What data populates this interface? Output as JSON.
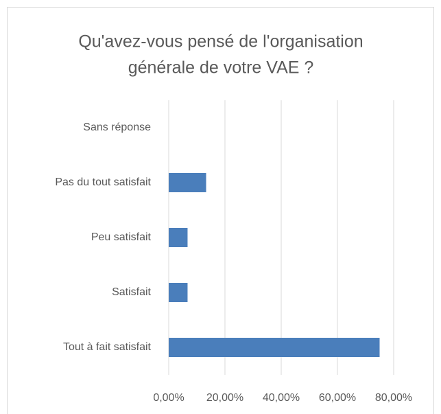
{
  "chart_data": {
    "type": "bar",
    "orientation": "horizontal",
    "title": [
      "Qu'avez-vous pensé de l'organisation",
      "générale de votre VAE ?"
    ],
    "categories": [
      "Sans réponse",
      "Pas du tout satisfait",
      "Peu satisfait",
      "Satisfait",
      "Tout à fait satisfait"
    ],
    "values": [
      0,
      13.3,
      6.7,
      6.7,
      75
    ],
    "color": "#4a7ebb",
    "xlim": [
      0,
      80
    ],
    "xticks": [
      {
        "value": 0,
        "label": "0,00%"
      },
      {
        "value": 20,
        "label": "20,00%"
      },
      {
        "value": 40,
        "label": "40,00%"
      },
      {
        "value": 60,
        "label": "60,00%"
      },
      {
        "value": 80,
        "label": "80,00%"
      }
    ],
    "grid": true
  }
}
